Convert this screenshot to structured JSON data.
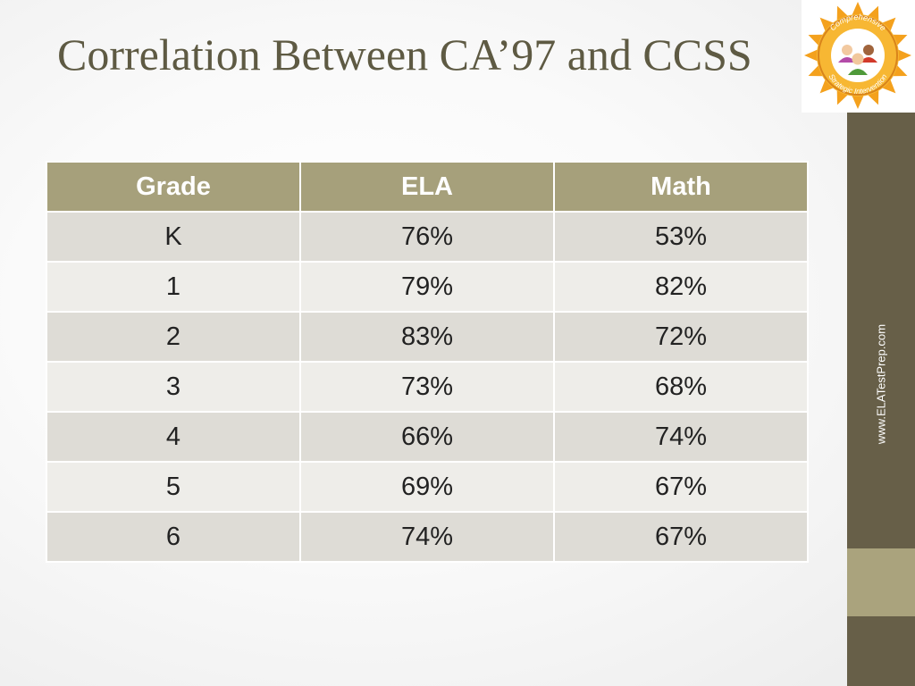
{
  "slide": {
    "title": "Correlation Between CA’97 and CCSS",
    "sidebar_text": "www.ELATestPrep.com"
  },
  "logo": {
    "text_top": "Comprehensive",
    "text_bottom": "Strategic Intervention"
  },
  "table": {
    "headers": [
      "Grade",
      "ELA",
      "Math"
    ],
    "rows": [
      [
        "K",
        "76%",
        "53%"
      ],
      [
        "1",
        "79%",
        "82%"
      ],
      [
        "2",
        "83%",
        "72%"
      ],
      [
        "3",
        "73%",
        "68%"
      ],
      [
        "4",
        "66%",
        "74%"
      ],
      [
        "5",
        "69%",
        "67%"
      ],
      [
        "6",
        "74%",
        "67%"
      ]
    ]
  },
  "colors": {
    "title": "#5e5a43",
    "header_bg": "#a6a07b",
    "row_odd": "#dedcd6",
    "row_even": "#eeede9",
    "sidebar": "#675f48",
    "sidebar_accent": "#aaa37d"
  }
}
